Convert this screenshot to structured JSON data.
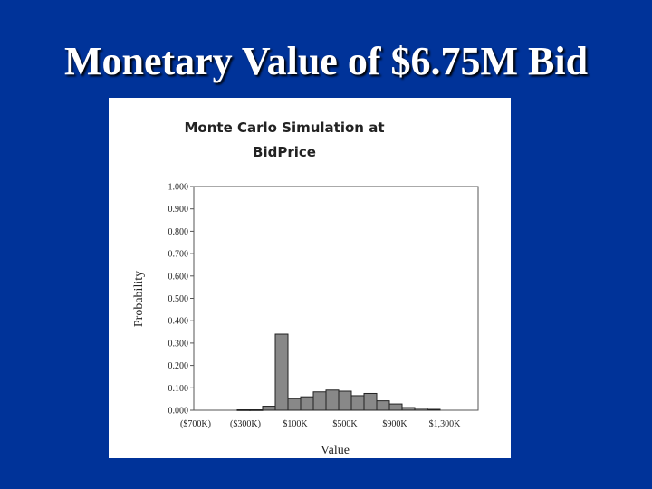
{
  "slide": {
    "title": "Monetary Value of $6.75M Bid"
  },
  "chart_data": {
    "type": "bar",
    "title_lines": [
      "Monte Carlo Simulation at",
      "BidPrice"
    ],
    "xlabel": "Value",
    "ylabel": "Probability",
    "ylim": [
      0,
      1.0
    ],
    "yticks": [
      "1.000",
      "0.900",
      "0.800",
      "0.700",
      "0.600",
      "0.500",
      "0.400",
      "0.300",
      "0.200",
      "0.100",
      "0.000"
    ],
    "xticks": [
      "($700K)",
      "($300K)",
      "$100K",
      "$500K",
      "$900K",
      "$1,300K"
    ],
    "bar_values": [
      0.002,
      0.002,
      0.018,
      0.34,
      0.052,
      0.06,
      0.082,
      0.09,
      0.085,
      0.065,
      0.075,
      0.042,
      0.028,
      0.012,
      0.01,
      0.004
    ],
    "grid": false,
    "colors": {
      "bar_fill": "#888888",
      "bar_stroke": "#222222"
    }
  }
}
